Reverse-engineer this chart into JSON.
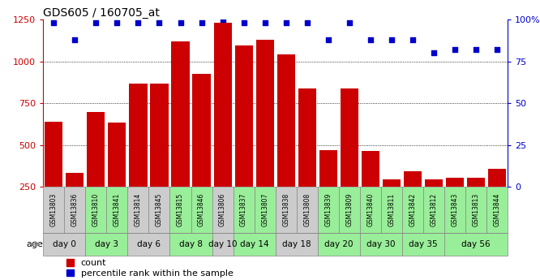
{
  "title": "GDS605 / 160705_at",
  "samples": [
    "GSM13803",
    "GSM13836",
    "GSM13810",
    "GSM13841",
    "GSM13814",
    "GSM13845",
    "GSM13815",
    "GSM13846",
    "GSM13806",
    "GSM13837",
    "GSM13807",
    "GSM13838",
    "GSM13808",
    "GSM13839",
    "GSM13809",
    "GSM13840",
    "GSM13811",
    "GSM13842",
    "GSM13812",
    "GSM13843",
    "GSM13813",
    "GSM13844"
  ],
  "counts": [
    640,
    335,
    695,
    635,
    865,
    865,
    1120,
    925,
    1230,
    1095,
    1130,
    1040,
    840,
    470,
    840,
    465,
    295,
    340,
    295,
    305,
    305,
    355
  ],
  "percentiles": [
    98,
    88,
    98,
    98,
    98,
    98,
    98,
    98,
    100,
    98,
    98,
    98,
    98,
    88,
    98,
    88,
    88,
    88,
    80,
    82,
    82,
    82
  ],
  "age_groups": [
    {
      "label": "day 0",
      "start": 0,
      "end": 2,
      "color": "#cccccc"
    },
    {
      "label": "day 3",
      "start": 2,
      "end": 4,
      "color": "#99ee99"
    },
    {
      "label": "day 6",
      "start": 4,
      "end": 6,
      "color": "#cccccc"
    },
    {
      "label": "day 8",
      "start": 6,
      "end": 8,
      "color": "#99ee99"
    },
    {
      "label": "day 10",
      "start": 8,
      "end": 9,
      "color": "#cccccc"
    },
    {
      "label": "day 14",
      "start": 9,
      "end": 11,
      "color": "#99ee99"
    },
    {
      "label": "day 18",
      "start": 11,
      "end": 13,
      "color": "#cccccc"
    },
    {
      "label": "day 20",
      "start": 13,
      "end": 15,
      "color": "#99ee99"
    },
    {
      "label": "day 30",
      "start": 15,
      "end": 17,
      "color": "#99ee99"
    },
    {
      "label": "day 35",
      "start": 17,
      "end": 19,
      "color": "#99ee99"
    },
    {
      "label": "day 56",
      "start": 19,
      "end": 22,
      "color": "#99ee99"
    }
  ],
  "ylim_left": [
    250,
    1250
  ],
  "ylim_right": [
    0,
    100
  ],
  "yticks_left": [
    250,
    500,
    750,
    1000,
    1250
  ],
  "yticks_right": [
    0,
    25,
    50,
    75,
    100
  ],
  "bar_color": "#cc0000",
  "dot_color": "#0000cc",
  "bg_color": "#ffffff",
  "label_count": "count",
  "label_percentile": "percentile rank within the sample",
  "pct_to_count_scale": 12.5
}
